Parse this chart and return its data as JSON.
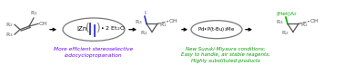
{
  "bg_color": "#ffffff",
  "fig_width": 3.78,
  "fig_height": 0.72,
  "dpi": 100,
  "molecule_color": "#555555",
  "iodine_color": "#3333cc",
  "green_color": "#00aa00",
  "blue_color": "#5500ee",
  "black": "#000000",
  "gray": "#777777",
  "caption1": "More efficient stereoselective\niodocyclopropanation",
  "caption1_color": "#6600ff",
  "caption2": "New Suzuki-Miyaura conditions;\nEasy to handle, air stable reagents;\nHighly substituted products",
  "caption2_color": "#009900",
  "hetAr_label": "(Het)Ar",
  "pd_label": "Pd•P(t-Bu)$_2$Me"
}
